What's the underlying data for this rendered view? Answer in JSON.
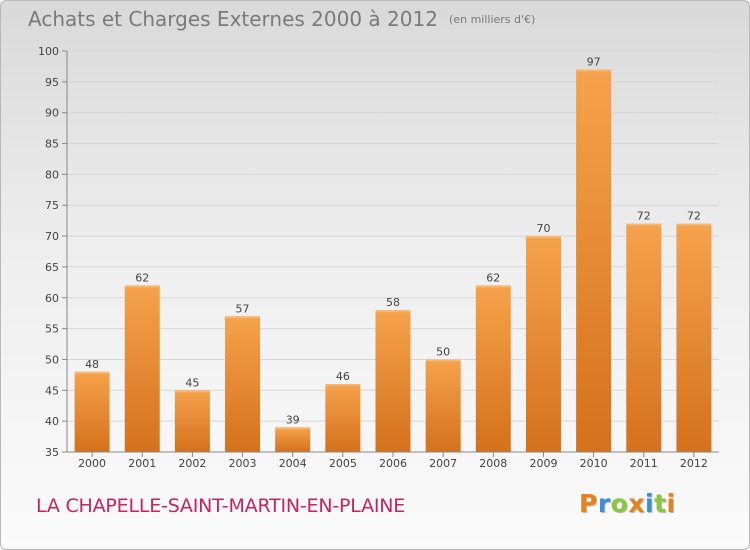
{
  "header": {
    "title": "Achats et Charges Externes 2000 à 2012",
    "subtitle": "(en milliers d'€)"
  },
  "place_name": "LA CHAPELLE-SAINT-MARTIN-EN-PLAINE",
  "logo": {
    "text": "Proxiti",
    "letter_colors": [
      "#e8811a",
      "#3b8fd6",
      "#8cc63f",
      "#e8811a",
      "#3b8fd6",
      "#8cc63f",
      "#e8811a"
    ]
  },
  "chart_data": {
    "type": "bar",
    "categories": [
      "2000",
      "2001",
      "2002",
      "2003",
      "2004",
      "2005",
      "2006",
      "2007",
      "2008",
      "2009",
      "2010",
      "2011",
      "2012"
    ],
    "values": [
      48,
      62,
      45,
      57,
      39,
      46,
      58,
      50,
      62,
      70,
      97,
      72,
      72
    ],
    "data_labels": [
      "48",
      "62",
      "45",
      "57",
      "39",
      "46",
      "58",
      "50",
      "62",
      "70",
      "97",
      "72",
      "72"
    ],
    "ylim": [
      35,
      100
    ],
    "yticks": [
      35,
      40,
      45,
      50,
      55,
      60,
      65,
      70,
      75,
      80,
      85,
      90,
      95,
      100
    ],
    "xlabel": "",
    "ylabel": "",
    "grid": true,
    "legend": "none",
    "bar_color_light": "#f6a24c",
    "bar_color_dark": "#d4711c"
  }
}
